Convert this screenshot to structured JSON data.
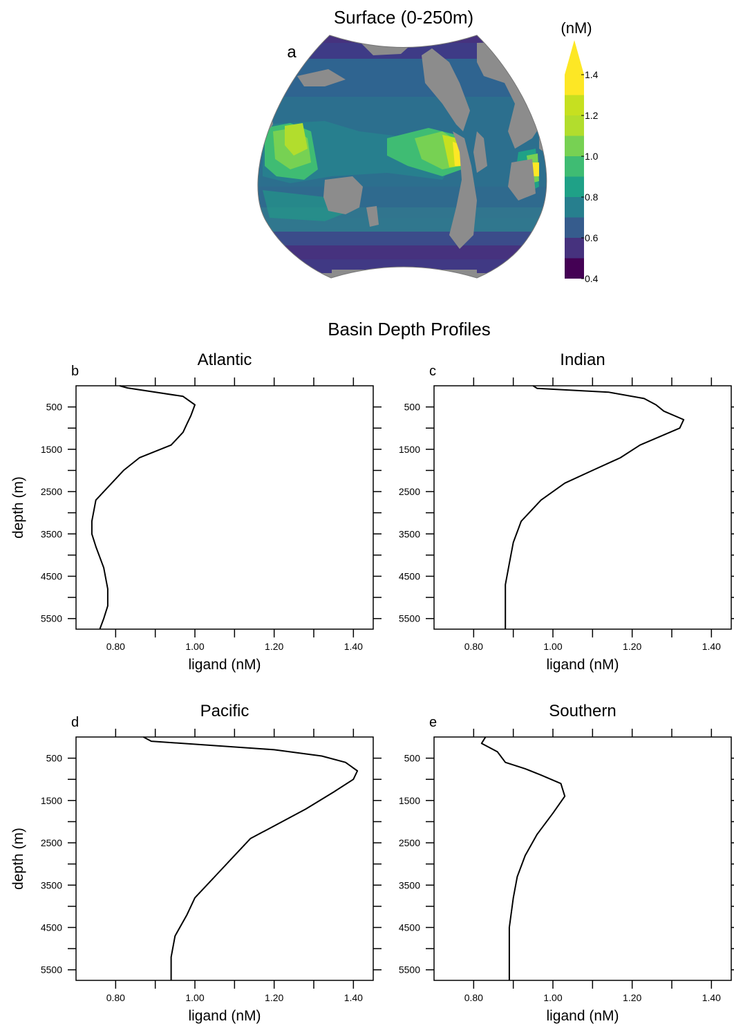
{
  "map": {
    "title": "Surface (0-250m)",
    "panel_letter": "a",
    "colorbar": {
      "unit": "(nM)",
      "ticks": [
        "1.4",
        "1.2",
        "1.0",
        "0.8",
        "0.6",
        "0.4"
      ],
      "levels": [
        0.4,
        0.5,
        0.6,
        0.7,
        0.8,
        0.9,
        1.0,
        1.1,
        1.2,
        1.3,
        1.4
      ],
      "colors": [
        "#440154",
        "#46327e",
        "#365c8d",
        "#277f8e",
        "#1fa187",
        "#3fbc73",
        "#77d153",
        "#b2dd2d",
        "#c6e020",
        "#fde725"
      ],
      "land_color": "#8c8c8c"
    }
  },
  "profiles_title": "Basin Depth Profiles",
  "chart_data": [
    {
      "type": "line",
      "panel": "b",
      "title": "Atlantic",
      "xlabel": "ligand (nM)",
      "ylabel": "depth (m)",
      "xlim": [
        0.7,
        1.45
      ],
      "ylim": [
        5750,
        0
      ],
      "xticks": [
        "0.80",
        "1.00",
        "1.20",
        "1.40"
      ],
      "yticks": [
        "500",
        "1500",
        "2500",
        "3500",
        "4500",
        "5500"
      ],
      "x": [
        0.81,
        0.83,
        0.97,
        1.0,
        0.99,
        0.98,
        0.97,
        0.94,
        0.86,
        0.82,
        0.79,
        0.75,
        0.74,
        0.74,
        0.75,
        0.77,
        0.78,
        0.78,
        0.77,
        0.76
      ],
      "y": [
        0,
        50,
        250,
        450,
        700,
        900,
        1100,
        1400,
        1700,
        2000,
        2300,
        2700,
        3200,
        3500,
        3800,
        4300,
        4800,
        5200,
        5500,
        5750
      ]
    },
    {
      "type": "line",
      "panel": "c",
      "title": "Indian",
      "xlabel": "ligand (nM)",
      "ylabel": "",
      "xlim": [
        0.7,
        1.45
      ],
      "ylim": [
        5750,
        0
      ],
      "xticks": [
        "0.80",
        "1.00",
        "1.20",
        "1.40"
      ],
      "yticks": [
        "500",
        "1500",
        "2500",
        "3500",
        "4500",
        "5500"
      ],
      "x": [
        0.95,
        0.96,
        1.14,
        1.23,
        1.26,
        1.28,
        1.33,
        1.32,
        1.22,
        1.17,
        1.1,
        1.03,
        0.97,
        0.92,
        0.9,
        0.89,
        0.88,
        0.88,
        0.88
      ],
      "y": [
        0,
        60,
        150,
        300,
        450,
        600,
        800,
        1000,
        1400,
        1700,
        2000,
        2300,
        2700,
        3200,
        3700,
        4200,
        4700,
        5200,
        5750
      ]
    },
    {
      "type": "line",
      "panel": "d",
      "title": "Pacific",
      "xlabel": "ligand (nM)",
      "ylabel": "depth (m)",
      "xlim": [
        0.7,
        1.45
      ],
      "ylim": [
        5750,
        0
      ],
      "xticks": [
        "0.80",
        "1.00",
        "1.20",
        "1.40"
      ],
      "yticks": [
        "500",
        "1500",
        "2500",
        "3500",
        "4500",
        "5500"
      ],
      "x": [
        0.87,
        0.89,
        1.2,
        1.32,
        1.38,
        1.41,
        1.4,
        1.35,
        1.28,
        1.2,
        1.14,
        1.1,
        1.05,
        1.0,
        0.98,
        0.95,
        0.94,
        0.94
      ],
      "y": [
        0,
        100,
        300,
        450,
        600,
        800,
        1000,
        1300,
        1700,
        2100,
        2400,
        2800,
        3300,
        3800,
        4200,
        4700,
        5200,
        5750
      ]
    },
    {
      "type": "line",
      "panel": "e",
      "title": "Southern",
      "xlabel": "ligand (nM)",
      "ylabel": "",
      "xlim": [
        0.7,
        1.45
      ],
      "ylim": [
        5750,
        0
      ],
      "xticks": [
        "0.80",
        "1.00",
        "1.20",
        "1.40"
      ],
      "yticks": [
        "500",
        "1500",
        "2500",
        "3500",
        "4500",
        "5500"
      ],
      "x": [
        0.83,
        0.82,
        0.83,
        0.86,
        0.88,
        0.93,
        0.97,
        1.02,
        1.03,
        1.0,
        0.96,
        0.93,
        0.91,
        0.9,
        0.89,
        0.89,
        0.89
      ],
      "y": [
        0,
        150,
        200,
        350,
        600,
        750,
        900,
        1100,
        1400,
        1800,
        2300,
        2800,
        3300,
        3800,
        4500,
        5200,
        5750
      ]
    }
  ]
}
